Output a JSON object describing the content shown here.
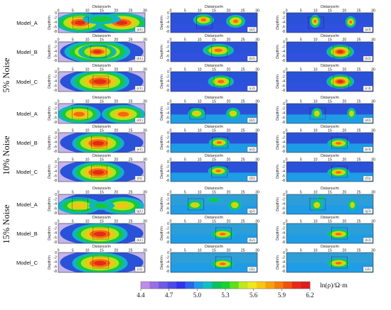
{
  "noise_labels": [
    "5% Noise",
    "10% Noise",
    "15% Noise"
  ],
  "model_labels": [
    "Model_A",
    "Model_B",
    "Model_C",
    "Model_A",
    "Model_B",
    "Model_C",
    "Model_A",
    "Model_B",
    "Model_C"
  ],
  "distance_label": "Distance/m",
  "depth_label": "Depth/m",
  "x_ticks": [
    "0",
    "5",
    "10",
    "15",
    "20",
    "25",
    "30"
  ],
  "y_ticks": [
    "0",
    "-2",
    "-4",
    "-6",
    "-8"
  ],
  "subplot_labels": [
    [
      "(a1)",
      "(a2)",
      "(a3)"
    ],
    [
      "(b1)",
      "(b2)",
      "(b3)"
    ],
    [
      "(c1)",
      "(c2)",
      "(c3)"
    ],
    [
      "(d1)",
      "(d2)",
      "(d3)"
    ],
    [
      "(e1)",
      "(e2)",
      "(e3)"
    ],
    [
      "(f1)",
      "(f2)",
      "(f3)"
    ],
    [
      "(g1)",
      "(g2)",
      "(g3)"
    ],
    [
      "(h1)",
      "(h2)",
      "(h3)"
    ],
    [
      "(i1)",
      "(i2)",
      "(i3)"
    ]
  ],
  "colorbar": {
    "title": "ln(ρ)/Ω·m",
    "ticks": [
      "4.4",
      "4.7",
      "5.0",
      "5.3",
      "5.6",
      "5.9",
      "6.2"
    ],
    "colors": [
      "#c08ce6",
      "#9a6ee2",
      "#6f5ae4",
      "#4e4ae6",
      "#3232e8",
      "#2a66ec",
      "#1f9ce6",
      "#10c0c0",
      "#10c060",
      "#18d230",
      "#5ee01c",
      "#bfe81e",
      "#f0e81a",
      "#f8c810",
      "#f8a00c",
      "#f47a0c",
      "#f05010",
      "#e82a18",
      "#e01a1a"
    ]
  },
  "colors": {
    "background": "#e0e0f0",
    "blue": "#2a52d8"
  }
}
